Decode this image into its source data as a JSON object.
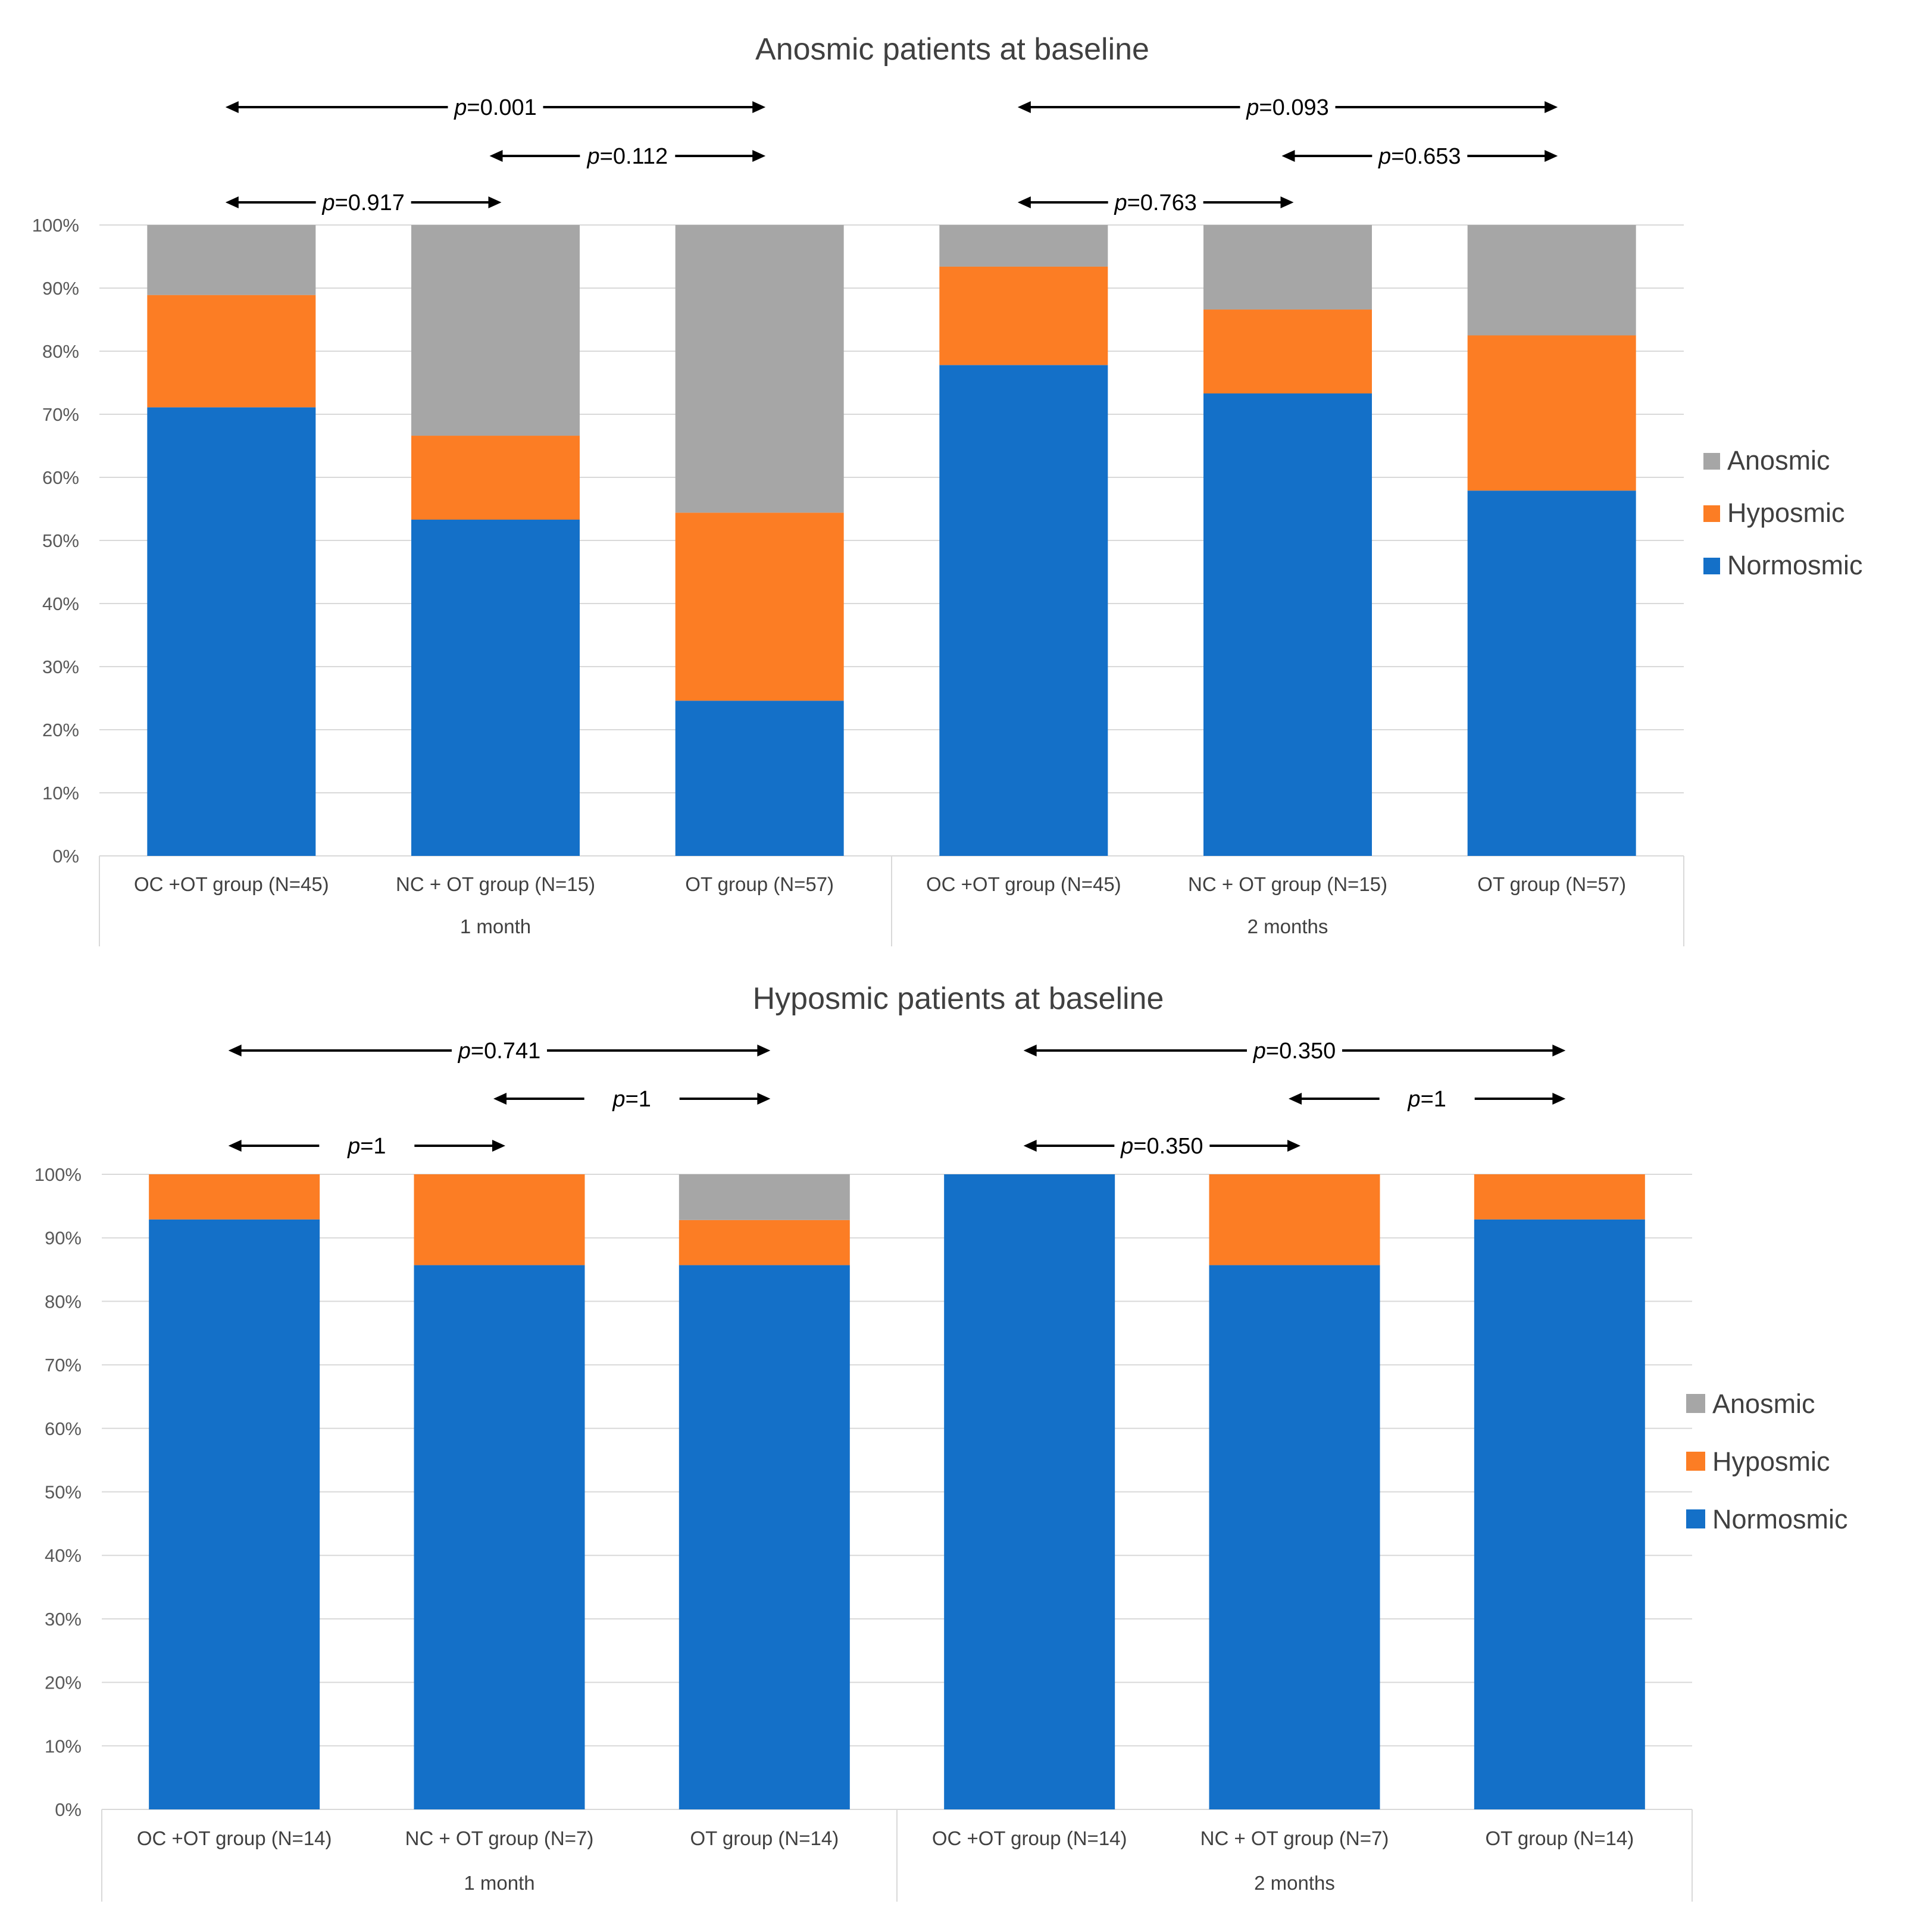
{
  "chart_data": [
    {
      "type": "bar",
      "stacked": true,
      "percent": true,
      "title": "Anosmic patients at baseline",
      "ylim": [
        0,
        100
      ],
      "yticks": [
        "0%",
        "10%",
        "20%",
        "30%",
        "40%",
        "50%",
        "60%",
        "70%",
        "80%",
        "90%",
        "100%"
      ],
      "groups": [
        {
          "label": "1 month",
          "categories": [
            "OC +OT group (N=45)",
            "NC + OT group (N=15)",
            "OT group (N=57)"
          ]
        },
        {
          "label": "2 months",
          "categories": [
            "OC +OT group (N=45)",
            "NC + OT group (N=15)",
            "OT group (N=57)"
          ]
        }
      ],
      "series": [
        {
          "name": "Normosmic",
          "color": "#1470c8",
          "values": [
            71.1,
            53.3,
            24.6,
            77.8,
            73.3,
            57.9
          ]
        },
        {
          "name": "Hyposmic",
          "color": "#fc7d24",
          "values": [
            17.8,
            13.3,
            29.8,
            15.6,
            13.3,
            24.6
          ]
        },
        {
          "name": "Anosmic",
          "color": "#a6a6a6",
          "values": [
            11.1,
            33.4,
            45.6,
            6.6,
            13.4,
            17.5
          ]
        }
      ],
      "legend_position": "right",
      "comparisons": [
        {
          "p": "0.001",
          "from": 0,
          "to": 2,
          "level": 3
        },
        {
          "p": "0.112",
          "from": 1,
          "to": 2,
          "level": 2
        },
        {
          "p": "0.917",
          "from": 0,
          "to": 1,
          "level": 1
        },
        {
          "p": "0.093",
          "from": 3,
          "to": 5,
          "level": 3
        },
        {
          "p": "0.653",
          "from": 4,
          "to": 5,
          "level": 2
        },
        {
          "p": "0.763",
          "from": 3,
          "to": 4,
          "level": 1
        }
      ]
    },
    {
      "type": "bar",
      "stacked": true,
      "percent": true,
      "title": "Hyposmic patients at baseline",
      "ylim": [
        0,
        100
      ],
      "yticks": [
        "0%",
        "10%",
        "20%",
        "30%",
        "40%",
        "50%",
        "60%",
        "70%",
        "80%",
        "90%",
        "100%"
      ],
      "groups": [
        {
          "label": "1 month",
          "categories": [
            "OC +OT group (N=14)",
            "NC + OT group (N=7)",
            "OT group (N=14)"
          ]
        },
        {
          "label": "2 months",
          "categories": [
            "OC +OT group (N=14)",
            "NC + OT group (N=7)",
            "OT group (N=14)"
          ]
        }
      ],
      "series": [
        {
          "name": "Normosmic",
          "color": "#1470c8",
          "values": [
            92.9,
            85.7,
            85.7,
            100,
            85.7,
            92.9
          ]
        },
        {
          "name": "Hyposmic",
          "color": "#fc7d24",
          "values": [
            7.1,
            14.3,
            7.1,
            0,
            14.3,
            7.1
          ]
        },
        {
          "name": "Anosmic",
          "color": "#a6a6a6",
          "values": [
            0,
            0,
            7.2,
            0,
            0,
            0
          ]
        }
      ],
      "legend_position": "right",
      "comparisons": [
        {
          "p": "0.741",
          "from": 0,
          "to": 2,
          "level": 3
        },
        {
          "p": "1",
          "from": 1,
          "to": 2,
          "level": 2
        },
        {
          "p": "1",
          "from": 0,
          "to": 1,
          "level": 1
        },
        {
          "p": "0.350",
          "from": 3,
          "to": 5,
          "level": 3
        },
        {
          "p": "1",
          "from": 4,
          "to": 5,
          "level": 2
        },
        {
          "p": "0.350",
          "from": 3,
          "to": 4,
          "level": 1
        }
      ]
    }
  ],
  "p_prefix": "p",
  "legend_order": [
    "Anosmic",
    "Hyposmic",
    "Normosmic"
  ]
}
